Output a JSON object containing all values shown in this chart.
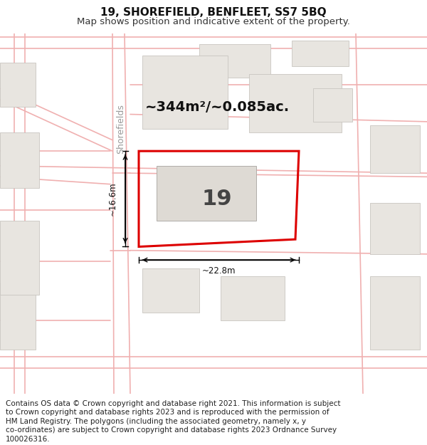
{
  "title_line1": "19, SHOREFIELD, BENFLEET, SS7 5BQ",
  "title_line2": "Map shows position and indicative extent of the property.",
  "footer_lines": [
    "Contains OS data © Crown copyright and database right 2021. This information is subject",
    "to Crown copyright and database rights 2023 and is reproduced with the permission of",
    "HM Land Registry. The polygons (including the associated geometry, namely x, y",
    "co-ordinates) are subject to Crown copyright and database rights 2023 Ordnance Survey",
    "100026316."
  ],
  "area_label": "~344m²/~0.085ac.",
  "property_number": "19",
  "dim_width": "~22.8m",
  "dim_height": "~16.6m",
  "street_label": "Shorefields",
  "map_bg": "#f5f3f0",
  "road_color": "#f0b0b0",
  "road_lw": 1.2,
  "building_fill": "#e8e5e0",
  "building_border": "#c8c5c0",
  "building_lw": 0.6,
  "property_fill": "none",
  "property_border": "#dd0000",
  "property_lw": 2.2,
  "inner_building_fill": "#dedad4",
  "inner_building_border": "#b8b5b0",
  "title_fontsize": 11,
  "subtitle_fontsize": 9.5,
  "footer_fontsize": 7.5,
  "number_fontsize": 22,
  "area_fontsize": 14,
  "street_fontsize": 9,
  "dim_fontsize": 8.5
}
